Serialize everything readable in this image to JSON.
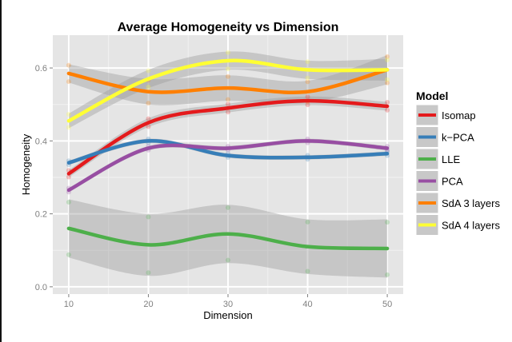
{
  "chart_data": {
    "type": "line",
    "title": "Average Homogeneity vs Dimension",
    "xlabel": "Dimension",
    "ylabel": "Homogeneity",
    "x": [
      10,
      20,
      30,
      40,
      50
    ],
    "xlim": [
      8,
      52
    ],
    "ylim": [
      -0.02,
      0.69
    ],
    "xticks": [
      10,
      20,
      30,
      40,
      50
    ],
    "yticks": [
      0.0,
      0.2,
      0.4,
      0.6
    ],
    "ytick_labels": [
      "0.0",
      "0.2",
      "0.4",
      "0.6"
    ],
    "grid": true,
    "legend": {
      "title": "Model",
      "placement": "right"
    },
    "series": [
      {
        "name": "Isomap",
        "color": "#e41a1c",
        "values": [
          0.31,
          0.45,
          0.49,
          0.51,
          0.495
        ],
        "se": [
          0.01,
          0.012,
          0.012,
          0.012,
          0.012
        ]
      },
      {
        "name": "k−PCA",
        "color": "#377eb8",
        "values": [
          0.34,
          0.4,
          0.36,
          0.355,
          0.365
        ],
        "se": [
          0.006,
          0.006,
          0.006,
          0.006,
          0.006
        ]
      },
      {
        "name": "LLE",
        "color": "#4daf4a",
        "values": [
          0.16,
          0.115,
          0.145,
          0.11,
          0.105
        ],
        "se": [
          0.08,
          0.085,
          0.08,
          0.075,
          0.08
        ]
      },
      {
        "name": "PCA",
        "color": "#984ea3",
        "values": [
          0.265,
          0.38,
          0.38,
          0.4,
          0.38
        ],
        "se": [
          0.006,
          0.006,
          0.006,
          0.006,
          0.006
        ]
      },
      {
        "name": "SdA 3 layers",
        "color": "#ff7f00",
        "values": [
          0.585,
          0.535,
          0.545,
          0.535,
          0.595
        ],
        "se": [
          0.025,
          0.035,
          0.035,
          0.03,
          0.04
        ]
      },
      {
        "name": "SdA 4 layers",
        "color": "#ffff33",
        "values": [
          0.455,
          0.57,
          0.62,
          0.595,
          0.595
        ],
        "se": [
          0.02,
          0.025,
          0.025,
          0.025,
          0.03
        ]
      }
    ]
  }
}
